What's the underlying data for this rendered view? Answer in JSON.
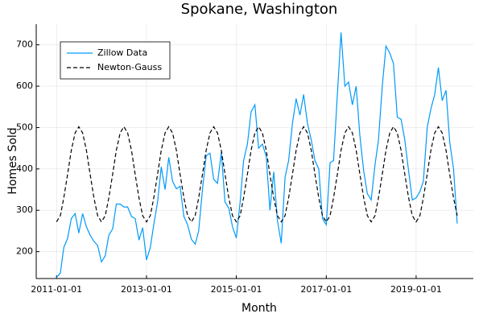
{
  "chart_data": {
    "type": "line",
    "title": "Spokane, Washington",
    "x_label": "Month",
    "y_label": "Homes Sold",
    "x": [
      "2011-01-01",
      "2011-02-01",
      "2011-03-01",
      "2011-04-01",
      "2011-05-01",
      "2011-06-01",
      "2011-07-01",
      "2011-08-01",
      "2011-09-01",
      "2011-10-01",
      "2011-11-01",
      "2011-12-01",
      "2012-01-01",
      "2012-02-01",
      "2012-03-01",
      "2012-04-01",
      "2012-05-01",
      "2012-06-01",
      "2012-07-01",
      "2012-08-01",
      "2012-09-01",
      "2012-10-01",
      "2012-11-01",
      "2012-12-01",
      "2013-01-01",
      "2013-02-01",
      "2013-03-01",
      "2013-04-01",
      "2013-05-01",
      "2013-06-01",
      "2013-07-01",
      "2013-08-01",
      "2013-09-01",
      "2013-10-01",
      "2013-11-01",
      "2013-12-01",
      "2014-01-01",
      "2014-02-01",
      "2014-03-01",
      "2014-04-01",
      "2014-05-01",
      "2014-06-01",
      "2014-07-01",
      "2014-08-01",
      "2014-09-01",
      "2014-10-01",
      "2014-11-01",
      "2014-12-01",
      "2015-01-01",
      "2015-02-01",
      "2015-03-01",
      "2015-04-01",
      "2015-05-01",
      "2015-06-01",
      "2015-07-01",
      "2015-08-01",
      "2015-09-01",
      "2015-10-01",
      "2015-11-01",
      "2015-12-01",
      "2016-01-01",
      "2016-02-01",
      "2016-03-01",
      "2016-04-01",
      "2016-05-01",
      "2016-06-01",
      "2016-07-01",
      "2016-08-01",
      "2016-09-01",
      "2016-10-01",
      "2016-11-01",
      "2016-12-01",
      "2017-01-01",
      "2017-02-01",
      "2017-03-01",
      "2017-04-01",
      "2017-05-01",
      "2017-06-01",
      "2017-07-01",
      "2017-08-01",
      "2017-09-01",
      "2017-10-01",
      "2017-11-01",
      "2017-12-01",
      "2018-01-01",
      "2018-02-01",
      "2018-03-01",
      "2018-04-01",
      "2018-05-01",
      "2018-06-01",
      "2018-07-01",
      "2018-08-01",
      "2018-09-01",
      "2018-10-01",
      "2018-11-01",
      "2018-12-01",
      "2019-01-01",
      "2019-02-01",
      "2019-03-01",
      "2019-04-01",
      "2019-05-01",
      "2019-06-01",
      "2019-07-01",
      "2019-08-01",
      "2019-09-01",
      "2019-10-01",
      "2019-11-01",
      "2019-12-01"
    ],
    "series": [
      {
        "name": "Zillow Data",
        "color": "#009af9",
        "style": "solid",
        "values": [
          138,
          148,
          210,
          232,
          280,
          292,
          245,
          292,
          260,
          240,
          225,
          215,
          175,
          190,
          240,
          255,
          315,
          315,
          308,
          308,
          285,
          280,
          228,
          258,
          180,
          210,
          265,
          320,
          405,
          350,
          428,
          370,
          352,
          358,
          285,
          265,
          230,
          218,
          250,
          350,
          432,
          438,
          375,
          365,
          440,
          320,
          305,
          260,
          233,
          320,
          420,
          460,
          538,
          555,
          450,
          460,
          430,
          300,
          393,
          275,
          220,
          380,
          420,
          510,
          570,
          530,
          580,
          510,
          470,
          420,
          400,
          280,
          265,
          415,
          420,
          580,
          730,
          600,
          610,
          555,
          600,
          480,
          395,
          340,
          325,
          410,
          470,
          600,
          697,
          680,
          655,
          525,
          520,
          470,
          395,
          325,
          330,
          345,
          370,
          500,
          545,
          580,
          645,
          565,
          590,
          465,
          400,
          268
        ]
      },
      {
        "name": "Newton-Gauss",
        "color": "#000000",
        "style": "dashed",
        "values": [
          272,
          287,
          330,
          387,
          445,
          487,
          502,
          487,
          445,
          387,
          330,
          287,
          272,
          287,
          330,
          387,
          445,
          487,
          502,
          487,
          445,
          387,
          330,
          287,
          272,
          287,
          330,
          387,
          445,
          487,
          502,
          487,
          445,
          387,
          330,
          287,
          272,
          287,
          330,
          387,
          445,
          487,
          502,
          487,
          445,
          387,
          330,
          287,
          272,
          287,
          330,
          387,
          445,
          487,
          502,
          487,
          445,
          387,
          330,
          287,
          272,
          287,
          330,
          387,
          445,
          487,
          502,
          487,
          445,
          387,
          330,
          287,
          272,
          287,
          330,
          387,
          445,
          487,
          502,
          487,
          445,
          387,
          330,
          287,
          272,
          287,
          330,
          387,
          445,
          487,
          502,
          487,
          445,
          387,
          330,
          287,
          272,
          287,
          330,
          387,
          445,
          487,
          502,
          487,
          445,
          387,
          330,
          287
        ]
      }
    ],
    "xlim": [
      "2010-07-20",
      "2020-04-10"
    ],
    "xticks": [
      "2011-01-01",
      "2013-01-01",
      "2015-01-01",
      "2017-01-01",
      "2019-01-01"
    ],
    "ylim": [
      135,
      750
    ],
    "yticks": [
      200,
      300,
      400,
      500,
      600,
      700
    ],
    "grid": true,
    "legend": "top-left"
  }
}
